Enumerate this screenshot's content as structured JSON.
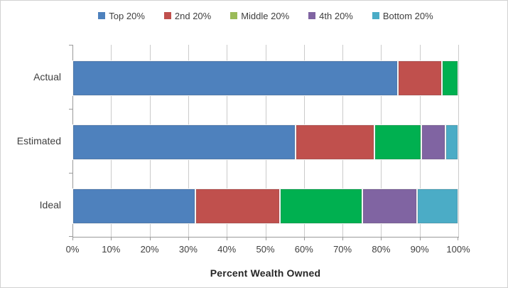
{
  "legend": {
    "items": [
      {
        "label": "Top 20%",
        "swatch": "#4E81BD"
      },
      {
        "label": "2nd 20%",
        "swatch": "#C0504D"
      },
      {
        "label": "Middle 20%",
        "swatch": "#9BBB59"
      },
      {
        "label": "4th 20%",
        "swatch": "#8064A2"
      },
      {
        "label": "Bottom 20%",
        "swatch": "#4BACC6"
      }
    ]
  },
  "chart_data": {
    "type": "bar",
    "orientation": "horizontal-stacked",
    "title": "",
    "categories": [
      "Actual",
      "Estimated",
      "Ideal"
    ],
    "series": [
      {
        "name": "Top 20%",
        "color": "#4E81BD",
        "values": [
          85,
          58.5,
          32
        ]
      },
      {
        "name": "2nd 20%",
        "color": "#C0504D",
        "values": [
          11,
          20.5,
          22
        ]
      },
      {
        "name": "Middle 20%",
        "color": "#00B050",
        "values": [
          4,
          12,
          21.5
        ]
      },
      {
        "name": "4th 20%",
        "color": "#8064A2",
        "values": [
          0,
          6,
          14
        ]
      },
      {
        "name": "Bottom 20%",
        "color": "#4BACC6",
        "values": [
          0,
          3,
          10.5
        ]
      }
    ],
    "xlabel": "Percent Wealth Owned",
    "x_ticks": [
      "0%",
      "10%",
      "20%",
      "30%",
      "40%",
      "50%",
      "60%",
      "70%",
      "80%",
      "90%",
      "100%"
    ],
    "xlim": [
      0,
      100
    ],
    "grid": true,
    "legend_position": "top"
  },
  "colors": {
    "gridline": "#CBCBCB",
    "axis": "#9A9A9A",
    "text": "#3F3F3F"
  }
}
